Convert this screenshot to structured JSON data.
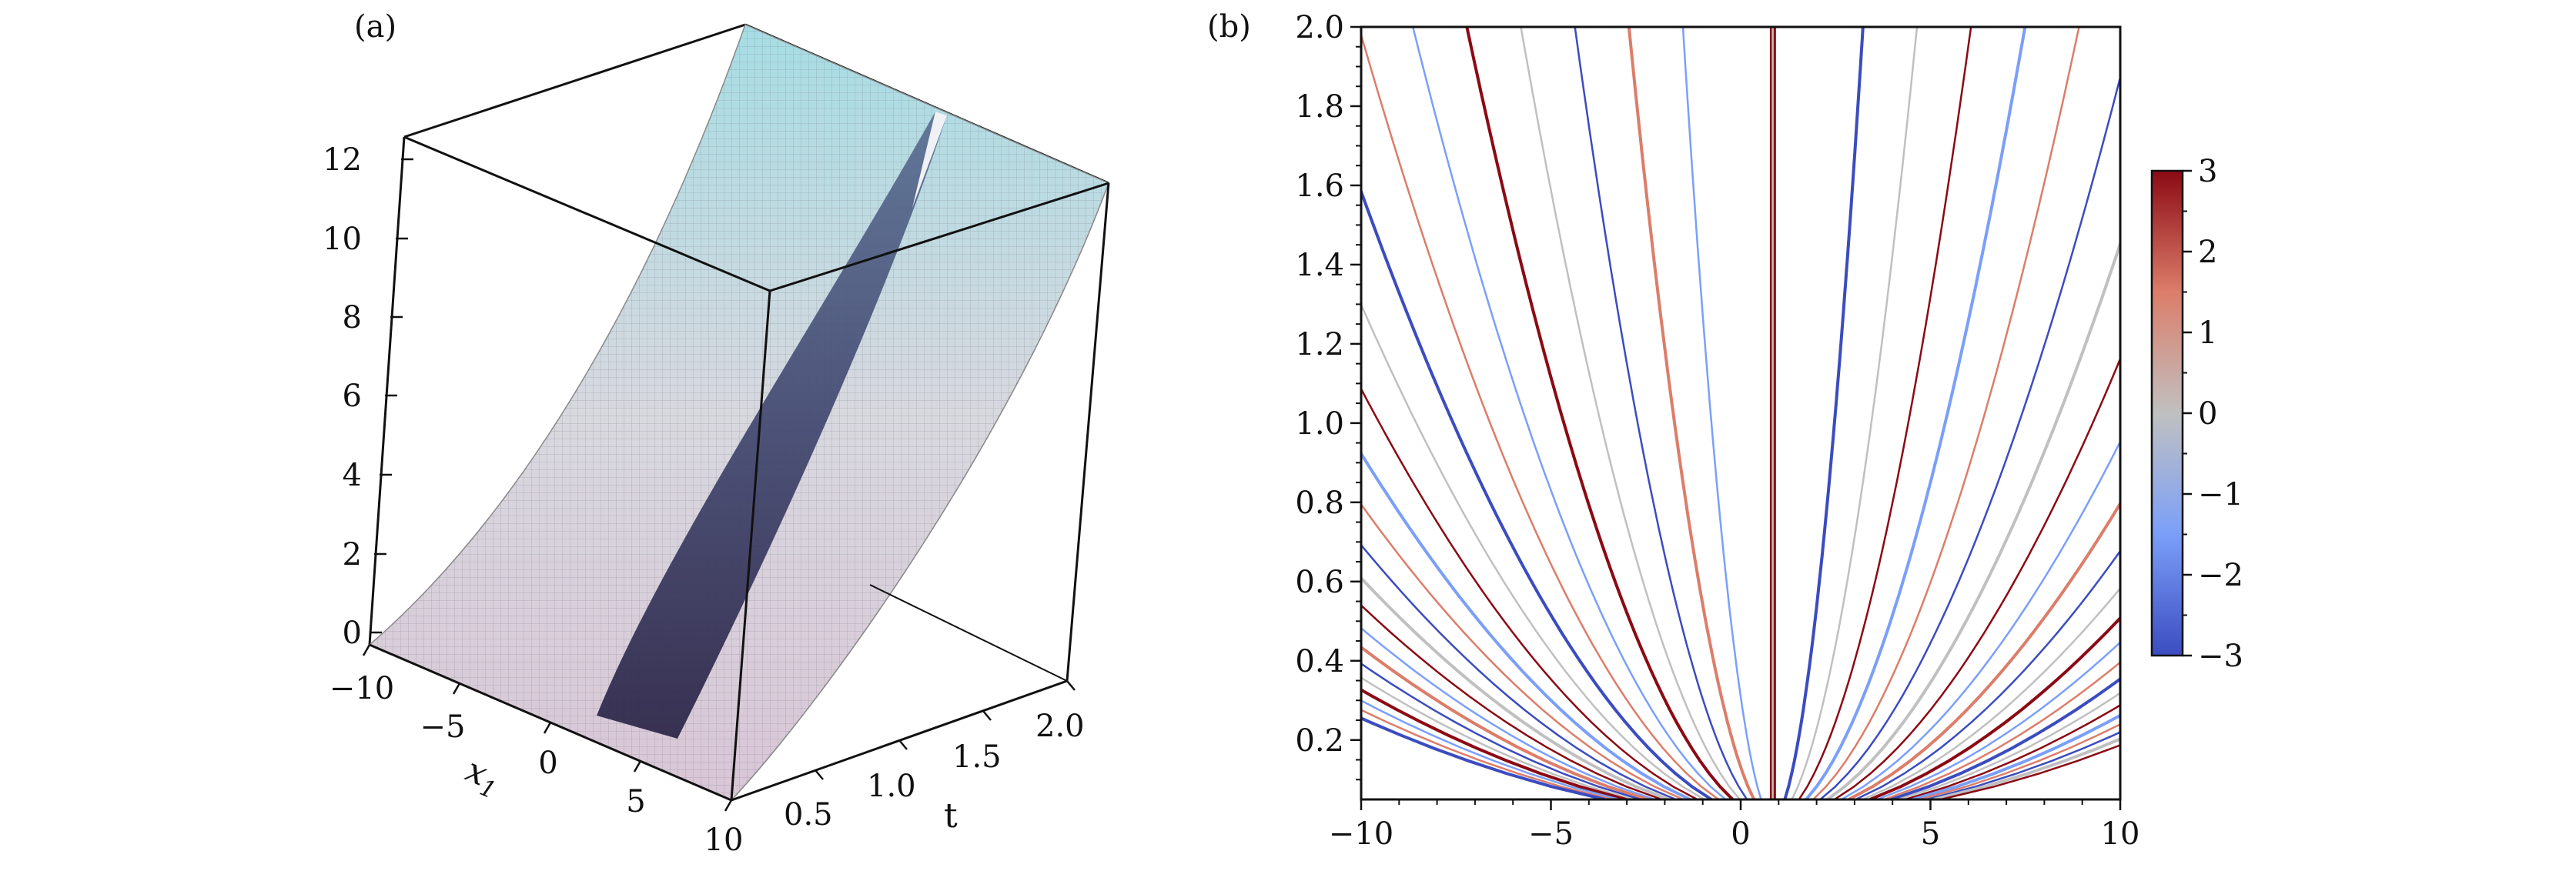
{
  "chart_data": [
    {
      "type": "surface",
      "panel_label": "(a)",
      "xlabel": "x",
      "xlabel_sub": "1",
      "ylabel": "t",
      "x_ticks": [
        "−10",
        "−5",
        "0",
        "5",
        "10"
      ],
      "t_ticks": [
        "0.5",
        "1.0",
        "1.5",
        "2.0"
      ],
      "z_ticks": [
        "0",
        "2",
        "4",
        "6",
        "8",
        "10",
        "12"
      ],
      "xlim": [
        -10,
        10
      ],
      "tlim": [
        0,
        2
      ],
      "zlim": [
        0,
        12
      ],
      "surface_color_low": "#d9c6d6",
      "surface_color_high": "#a6dde4",
      "channel_color": "#3a3f6c"
    },
    {
      "type": "contour",
      "panel_label": "(b)",
      "x_ticks": [
        "−10",
        "−5",
        "0",
        "5",
        "10"
      ],
      "y_ticks": [
        "0.2",
        "0.4",
        "0.6",
        "0.8",
        "1.0",
        "1.2",
        "1.4",
        "1.6",
        "1.8",
        "2.0"
      ],
      "xlim": [
        -10,
        10
      ],
      "ylim": [
        0.05,
        2.0
      ],
      "colorbar_ticks": [
        "3",
        "2",
        "1",
        "0",
        "−1",
        "−2",
        "−3"
      ],
      "colorbar_range": [
        -3,
        3
      ],
      "colormap": [
        "#3b4cc0",
        "#7b9ff9",
        "#c0c0c0",
        "#dc7d6a",
        "#8b0a14"
      ]
    }
  ]
}
